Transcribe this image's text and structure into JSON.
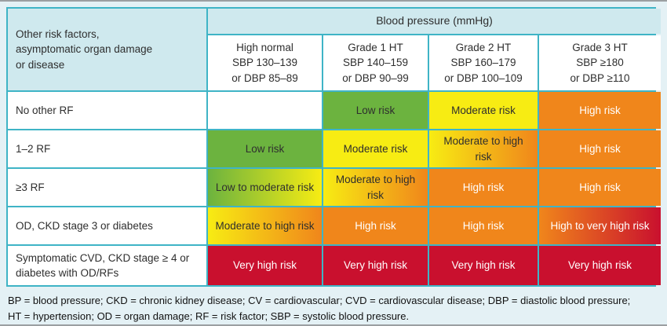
{
  "colors": {
    "page-bg": "#e4f1f5",
    "grey-line": "#9b9fa2",
    "border": "#3fb4c6",
    "header-fill": "#cfe9ee",
    "green": "#6cb33f",
    "yellow": "#f7ec13",
    "orange": "#f0861b",
    "red": "#c9102e",
    "dark-text": "#2e2e2e",
    "white-text": "#ffffff"
  },
  "table": {
    "corner_header_lines": [
      "Other risk factors,",
      "asymptomatic organ damage",
      "or disease"
    ],
    "bp_band": "Blood pressure (mmHg)",
    "columns": [
      {
        "lines": [
          "High normal",
          "SBP 130–139",
          "or DBP 85–89"
        ]
      },
      {
        "lines": [
          "Grade 1 HT",
          "SBP 140–159",
          "or DBP 90–99"
        ]
      },
      {
        "lines": [
          "Grade 2 HT",
          "SBP 160–179",
          "or DBP 100–109"
        ]
      },
      {
        "lines": [
          "Grade 3 HT",
          "SBP ≥180",
          "or DBP ≥110"
        ]
      }
    ],
    "rows": [
      {
        "label": "No other RF",
        "cells": [
          {
            "text": "",
            "style": "empty"
          },
          {
            "text": "Low risk",
            "style": "green"
          },
          {
            "text": "Moderate risk",
            "style": "yellow"
          },
          {
            "text": "High risk",
            "style": "orange"
          }
        ]
      },
      {
        "label": "1–2 RF",
        "cells": [
          {
            "text": "Low risk",
            "style": "green"
          },
          {
            "text": "Moderate risk",
            "style": "yellow"
          },
          {
            "text": "Moderate to high risk",
            "style": "yellow-orange"
          },
          {
            "text": "High risk",
            "style": "orange"
          }
        ]
      },
      {
        "label": "≥3 RF",
        "cells": [
          {
            "text": "Low to moderate risk",
            "style": "green-yellow"
          },
          {
            "text": "Moderate to high risk",
            "style": "yellow-orange"
          },
          {
            "text": "High risk",
            "style": "orange"
          },
          {
            "text": "High risk",
            "style": "orange"
          }
        ]
      },
      {
        "label": "OD, CKD stage 3 or diabetes",
        "cells": [
          {
            "text": "Moderate to high risk",
            "style": "yellow-orange"
          },
          {
            "text": "High risk",
            "style": "orange"
          },
          {
            "text": "High risk",
            "style": "orange"
          },
          {
            "text": "High to very high risk",
            "style": "orange-red"
          }
        ]
      },
      {
        "label": "Symptomatic CVD, CKD stage ≥ 4 or diabetes with OD/RFs",
        "cells": [
          {
            "text": "Very high risk",
            "style": "red"
          },
          {
            "text": "Very high risk",
            "style": "red"
          },
          {
            "text": "Very high risk",
            "style": "red"
          },
          {
            "text": "Very high risk",
            "style": "red"
          }
        ]
      }
    ]
  },
  "footnote": {
    "line1": "BP = blood pressure; CKD = chronic kidney disease; CV = cardiovascular; CVD = cardiovascular disease; DBP = diastolic blood pressure;",
    "line2": "HT = hypertension; OD = organ damage; RF = risk factor; SBP = systolic blood pressure."
  }
}
